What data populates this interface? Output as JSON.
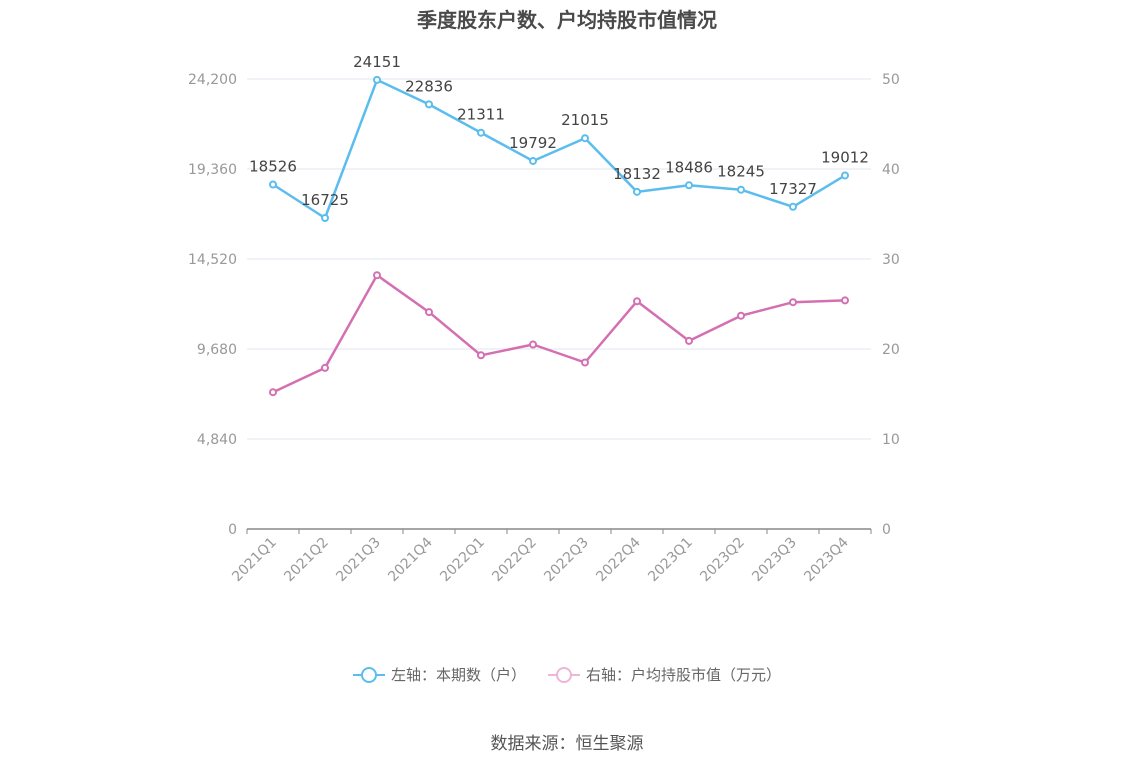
{
  "chart_data": {
    "type": "line",
    "title": "季度股东户数、户均持股市值情况",
    "categories": [
      "2021Q1",
      "2021Q2",
      "2021Q3",
      "2021Q4",
      "2022Q1",
      "2022Q2",
      "2022Q3",
      "2022Q4",
      "2023Q1",
      "2023Q2",
      "2023Q3",
      "2023Q4"
    ],
    "left_axis": {
      "ylim": [
        0,
        24200
      ],
      "ticks": [
        "0",
        "4,840",
        "9,680",
        "14,520",
        "19,360",
        "24,200"
      ]
    },
    "right_axis": {
      "ylim": [
        0,
        50
      ],
      "ticks": [
        "0",
        "10",
        "20",
        "30",
        "40",
        "50"
      ]
    },
    "series": [
      {
        "name": "左轴：本期数（户）",
        "axis": "left",
        "color": "#5bbdee",
        "values": [
          18526,
          16725,
          24151,
          22836,
          21311,
          19792,
          21015,
          18132,
          18486,
          18245,
          17327,
          19012
        ],
        "data_labels": [
          "18526",
          "16725",
          "24151",
          "22836",
          "21311",
          "19792",
          "21015",
          "18132",
          "18486",
          "18245",
          "17327",
          "19012"
        ]
      },
      {
        "name": "右轴：户均持股市值（万元）",
        "axis": "right",
        "color": "#d46fb2",
        "values": [
          15.2,
          17.9,
          28.2,
          24.1,
          19.3,
          20.5,
          18.5,
          25.3,
          20.9,
          23.7,
          25.2,
          25.4
        ]
      }
    ],
    "grid": true,
    "legend_position": "bottom"
  },
  "legend": {
    "left_label": "左轴：本期数（户）",
    "right_label": "右轴：户均持股市值（万元）",
    "left_color": "#5bbdee",
    "right_color": "#f0b4d8"
  },
  "source": "数据来源：恒生聚源"
}
